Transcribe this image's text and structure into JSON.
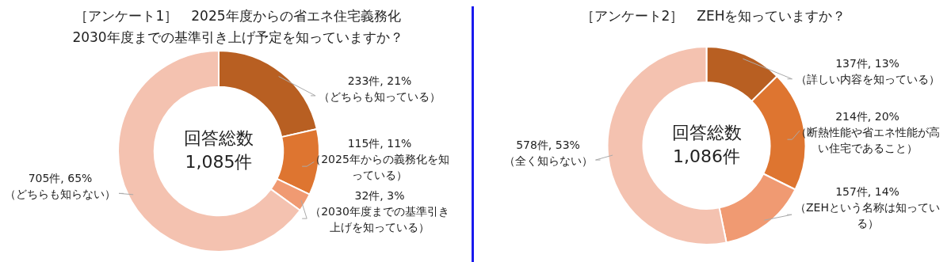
{
  "chart_data": [
    {
      "type": "donut",
      "title": "［アンケート1］　2025年度からの省エネ住宅義務化\n2030年度までの基準引き上げ予定を知っていますか？",
      "categories": [
        "（どちらも知っている）",
        "（2025年からの義務化を知っている）",
        "（2030年度までの基準引き上げを知っている）",
        "（どちらも知らない）"
      ],
      "values": [
        233,
        115,
        32,
        705
      ],
      "value_labels": [
        "233件, 21%",
        "115件, 11%",
        "32件, 3%",
        "705件, 65%"
      ],
      "colors": [
        "#b85f22",
        "#de7530",
        "#f09a72",
        "#f4c2b0"
      ],
      "annotations": [
        "回答総数\n1,085件"
      ],
      "legend": false
    },
    {
      "type": "donut",
      "title": "［アンケート2］　ZEHを知っていますか？",
      "categories": [
        "（詳しい内容を知っている）",
        "（断熱性能や省エネ性能が高い住宅であること）",
        "（ZEHという名称は知っている）",
        "（全く知らない）"
      ],
      "values": [
        137,
        214,
        157,
        578
      ],
      "value_labels": [
        "137件, 13%",
        "214件, 20%",
        "157件, 14%",
        "578件, 53%"
      ],
      "colors": [
        "#b85f22",
        "#de7530",
        "#f09a72",
        "#f4c2b0"
      ],
      "annotations": [
        "回答総数\n1,086件"
      ],
      "legend": false
    }
  ]
}
